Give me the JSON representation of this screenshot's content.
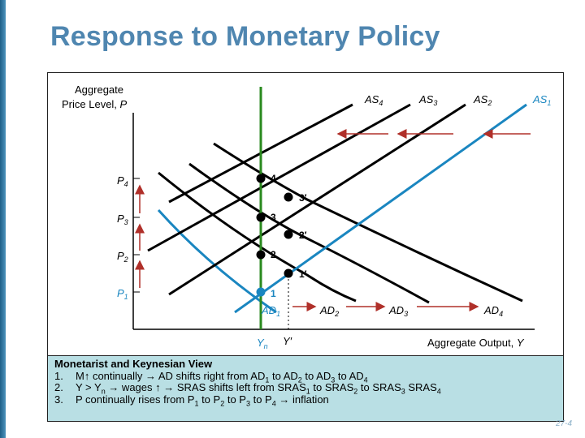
{
  "slide": {
    "title": "Response to Monetary Policy",
    "number": "27-4"
  },
  "diagram": {
    "y_axis_label_line1": "Aggregate",
    "y_axis_label_line2": "Price Level,",
    "y_axis_symbol": "P",
    "x_axis_label": "Aggregate Output,",
    "x_axis_symbol": "Y",
    "x_ticks": {
      "yn_base": "Y",
      "yn_sub": "n",
      "yprime": "Y′"
    },
    "price_levels": [
      {
        "base": "P",
        "sub": "1"
      },
      {
        "base": "P",
        "sub": "2"
      },
      {
        "base": "P",
        "sub": "3"
      },
      {
        "base": "P",
        "sub": "4"
      }
    ],
    "as_curves": [
      {
        "base": "AS",
        "sub": "4"
      },
      {
        "base": "AS",
        "sub": "3"
      },
      {
        "base": "AS",
        "sub": "2"
      },
      {
        "base": "AS",
        "sub": "1"
      }
    ],
    "ad_curves": [
      {
        "base": "AD",
        "sub": "1"
      },
      {
        "base": "AD",
        "sub": "2"
      },
      {
        "base": "AD",
        "sub": "3"
      },
      {
        "base": "AD",
        "sub": "4"
      }
    ],
    "points": [
      "1",
      "2",
      "3",
      "4"
    ],
    "prime_points": [
      "1′",
      "2′",
      "3′"
    ],
    "colors": {
      "blue": "#1a86c0",
      "green": "#2a8a1f",
      "arrow": "#b0302a"
    }
  },
  "caption": {
    "heading": "Monetarist and Keynesian View",
    "item1": {
      "num": "1.",
      "t1": "M↑ continually → AD shifts right from AD",
      "s1": "1",
      "t2": " to AD",
      "s2": "2",
      "t3": " to AD",
      "s3": "3",
      "t4": " to AD",
      "s4": "4"
    },
    "item2": {
      "num": "2.",
      "t1": "Y > Y",
      "s1": "n",
      "t2": " →  wages ↑ → SRAS shifts left from SRAS",
      "s2": "1",
      "t3": " to SRAS",
      "s3": "2",
      "t4": " to SRAS",
      "s4": "3",
      "t5": " SRAS",
      "s5": "4"
    },
    "item3": {
      "num": "3.",
      "t1": "P continually rises from P",
      "s1": "1",
      "t2": " to P",
      "s2": "2",
      "t3": " to P",
      "s3": "3",
      "t4": " to P",
      "s4": "4",
      "t5": " → inflation"
    }
  }
}
